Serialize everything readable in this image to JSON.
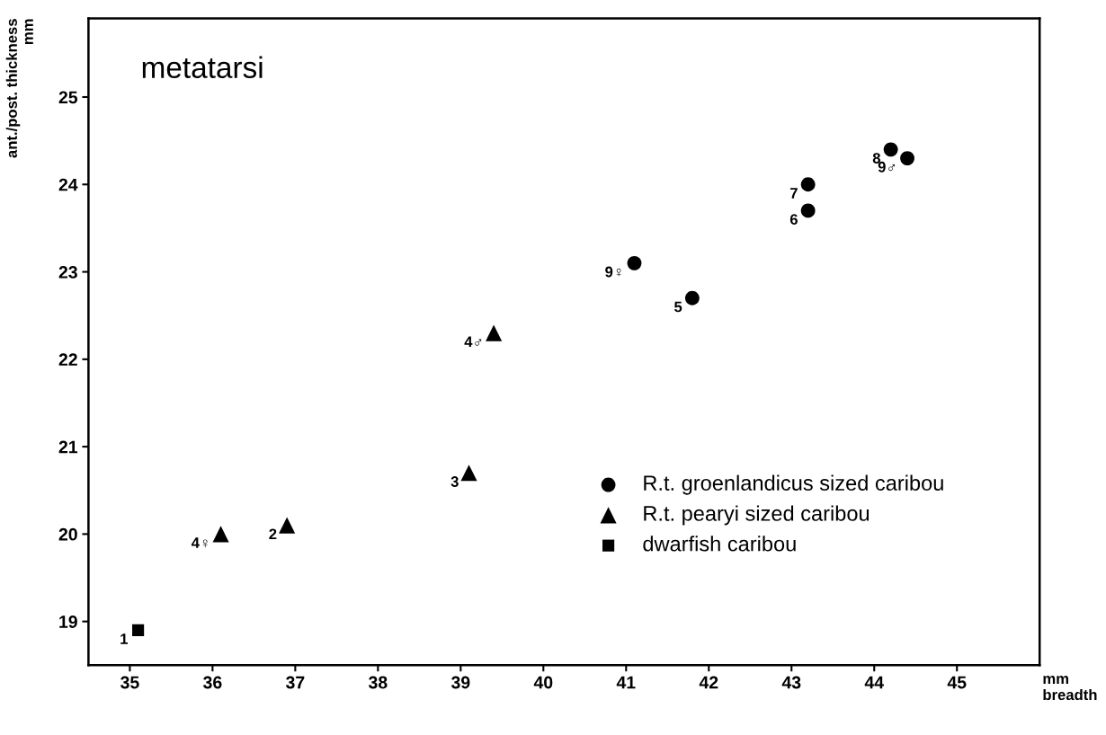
{
  "chart_data": {
    "type": "scatter",
    "title": "metatarsi",
    "xlabel": "mm\nbreadth",
    "ylabel": "ant./post. thickness\nmm",
    "series": [
      {
        "name": "R.t. groenlandicus sized caribou",
        "color": "#000000",
        "marker": "circle",
        "x": [
          41.1,
          41.8,
          43.2,
          43.2,
          44.2,
          44.4
        ],
        "values": [
          23.1,
          22.7,
          23.7,
          24.0,
          24.4,
          24.3
        ]
      },
      {
        "name": "R.t. pearyi sized caribou",
        "color": "#000000",
        "marker": "triangle",
        "x": [
          36.1,
          36.9,
          39.1,
          39.4
        ],
        "values": [
          20.0,
          20.1,
          20.7,
          22.3
        ]
      },
      {
        "name": "dwarfish caribou",
        "color": "#000000",
        "marker": "square",
        "x": [
          35.1
        ],
        "values": [
          18.9
        ]
      }
    ],
    "annotations": [
      {
        "text": "9♀",
        "x": 41.1,
        "y": 23.1
      },
      {
        "text": "5",
        "x": 41.8,
        "y": 22.7
      },
      {
        "text": "6",
        "x": 43.2,
        "y": 23.7
      },
      {
        "text": "7",
        "x": 43.2,
        "y": 24.0
      },
      {
        "text": "8",
        "x": 44.2,
        "y": 24.4
      },
      {
        "text": "9♂",
        "x": 44.4,
        "y": 24.3
      },
      {
        "text": "4♀",
        "x": 36.1,
        "y": 20.0
      },
      {
        "text": "2",
        "x": 36.9,
        "y": 20.1
      },
      {
        "text": "3",
        "x": 39.1,
        "y": 20.7
      },
      {
        "text": "4♂",
        "x": 39.4,
        "y": 22.3
      },
      {
        "text": "1",
        "x": 35.1,
        "y": 18.9
      }
    ],
    "xlim": [
      34.5,
      46.0
    ],
    "ylim": [
      18.5,
      25.9
    ],
    "xticks": [
      35,
      36,
      37,
      38,
      39,
      40,
      41,
      42,
      43,
      44,
      45
    ],
    "yticks": [
      19,
      20,
      21,
      22,
      23,
      24,
      25
    ],
    "grid": false,
    "legend": "bottom right"
  }
}
